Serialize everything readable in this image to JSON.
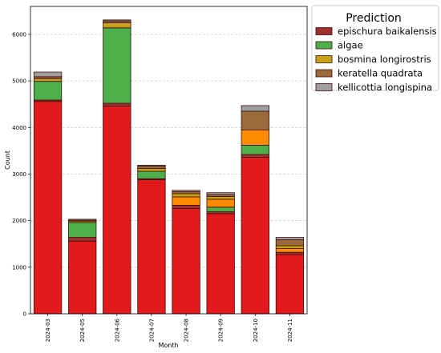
{
  "chart_data": {
    "type": "bar",
    "stacked": true,
    "xlabel": "Month",
    "ylabel": "Count",
    "ylim": [
      0,
      6600
    ],
    "yticks": [
      0,
      1000,
      2000,
      3000,
      4000,
      5000,
      6000
    ],
    "grid": "y-dashed",
    "legend_title": "Prediction",
    "legend_position": "outside-right-top",
    "categories": [
      "2024-03",
      "2024-05",
      "2024-06",
      "2024-07",
      "2024-08",
      "2024-09",
      "2024-10",
      "2024-11"
    ],
    "series": [
      {
        "name": "red-base",
        "legend": false,
        "color": "#e31a1c",
        "values": [
          4560,
          1560,
          4460,
          2880,
          2260,
          2150,
          3360,
          1270
        ]
      },
      {
        "name": "epischura baikalensis",
        "legend": true,
        "color": "#a0302d",
        "values": [
          30,
          80,
          60,
          20,
          70,
          40,
          60,
          50
        ]
      },
      {
        "name": "algae",
        "legend": true,
        "color": "#4daf4a",
        "values": [
          400,
          320,
          1620,
          160,
          0,
          100,
          200,
          0
        ]
      },
      {
        "name": "orange",
        "legend": false,
        "color": "#ff8c00",
        "values": [
          0,
          0,
          0,
          0,
          180,
          170,
          330,
          80
        ]
      },
      {
        "name": "bosmina longirostris",
        "legend": true,
        "color": "#c9a21a",
        "values": [
          60,
          30,
          110,
          60,
          70,
          60,
          0,
          60
        ]
      },
      {
        "name": "keratella quadrata",
        "legend": true,
        "color": "#9a6a3a",
        "values": [
          40,
          20,
          40,
          50,
          40,
          40,
          400,
          130
        ]
      },
      {
        "name": "kellicottia longispina",
        "legend": true,
        "color": "#a0a0a0",
        "values": [
          100,
          20,
          20,
          20,
          30,
          40,
          120,
          50
        ]
      }
    ],
    "colors": {
      "edge": "#3a0d0d",
      "grid": "#c8c8c8"
    }
  }
}
